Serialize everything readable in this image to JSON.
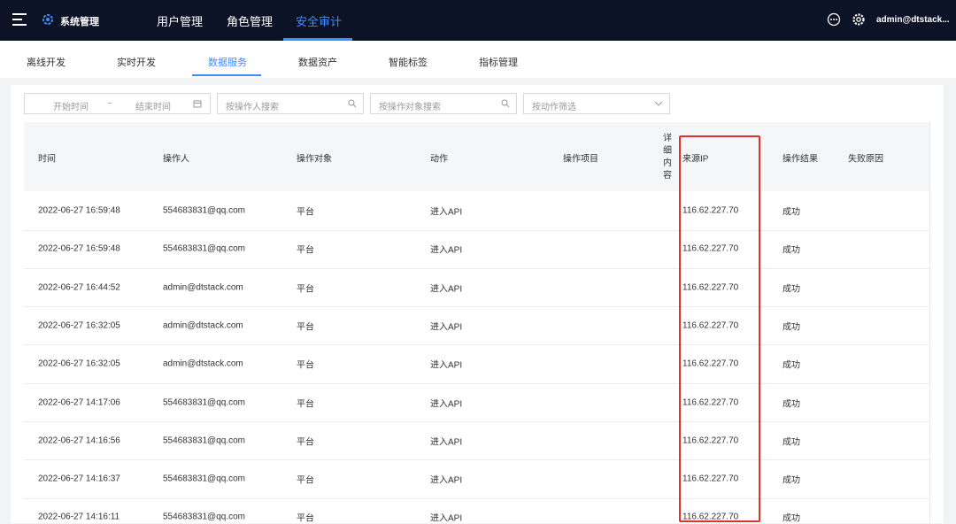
{
  "header": {
    "title": "系统管理",
    "nav": [
      "用户管理",
      "角色管理",
      "安全审计"
    ],
    "user": "admin@dtstack..."
  },
  "tabs": [
    "离线开发",
    "实时开发",
    "数据服务",
    "数据资产",
    "智能标签",
    "指标管理"
  ],
  "filters": {
    "start": "开始时间",
    "separator": "~",
    "end": "结束时间",
    "operator_search": "按操作人搜索",
    "target_search": "按操作对象搜索",
    "action_select": "按动作筛选"
  },
  "table": {
    "columns": [
      "时间",
      "操作人",
      "操作对象",
      "动作",
      "操作项目",
      "详细内容",
      "来源IP",
      "操作结果",
      "失败原因"
    ],
    "rows": [
      {
        "time": "2022-06-27 16:59:48",
        "operator": "554683831@qq.com",
        "target": "平台",
        "action": "进入API",
        "ip": "116.62.227.70",
        "result": "成功"
      },
      {
        "time": "2022-06-27 16:59:48",
        "operator": "554683831@qq.com",
        "target": "平台",
        "action": "进入API",
        "ip": "116.62.227.70",
        "result": "成功"
      },
      {
        "time": "2022-06-27 16:44:52",
        "operator": "admin@dtstack.com",
        "target": "平台",
        "action": "进入API",
        "ip": "116.62.227.70",
        "result": "成功"
      },
      {
        "time": "2022-06-27 16:32:05",
        "operator": "admin@dtstack.com",
        "target": "平台",
        "action": "进入API",
        "ip": "116.62.227.70",
        "result": "成功"
      },
      {
        "time": "2022-06-27 16:32:05",
        "operator": "admin@dtstack.com",
        "target": "平台",
        "action": "进入API",
        "ip": "116.62.227.70",
        "result": "成功"
      },
      {
        "time": "2022-06-27 14:17:06",
        "operator": "554683831@qq.com",
        "target": "平台",
        "action": "进入API",
        "ip": "116.62.227.70",
        "result": "成功"
      },
      {
        "time": "2022-06-27 14:16:56",
        "operator": "554683831@qq.com",
        "target": "平台",
        "action": "进入API",
        "ip": "116.62.227.70",
        "result": "成功"
      },
      {
        "time": "2022-06-27 14:16:37",
        "operator": "554683831@qq.com",
        "target": "平台",
        "action": "进入API",
        "ip": "116.62.227.70",
        "result": "成功"
      },
      {
        "time": "2022-06-27 14:16:11",
        "operator": "554683831@qq.com",
        "target": "平台",
        "action": "进入API",
        "ip": "116.62.227.70",
        "result": "成功"
      }
    ]
  }
}
